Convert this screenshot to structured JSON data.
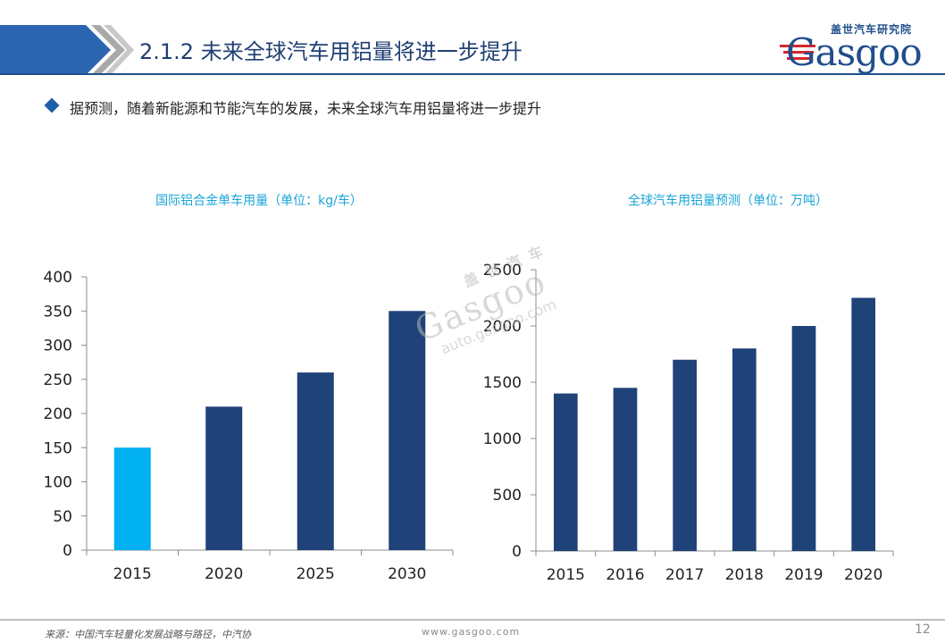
{
  "header": {
    "title": "2.1.2 未来全球汽车用铝量将进一步提升",
    "logo_cn": "盖世汽车研究院",
    "logo_en": "Gasgoo"
  },
  "bullet": {
    "text": "据预测，随着新能源和节能汽车的发展，未来全球汽车用铝量将进一步提升"
  },
  "watermark": {
    "cn": "盖世汽车",
    "en": "Gasgoo",
    "url": "auto.gasgoo.com"
  },
  "colors": {
    "title": "#1f3f73",
    "bar_dark": "#1f4278",
    "bar_light": "#00b0f0",
    "chart_title": "#1aa4d8"
  },
  "chart_data": [
    {
      "type": "bar",
      "title": "国际铝合金单车用量（单位：kg/车）",
      "categories": [
        "2015",
        "2020",
        "2025",
        "2030"
      ],
      "values": [
        150,
        210,
        260,
        350
      ],
      "highlight_index": 0,
      "ylim": [
        0,
        400
      ],
      "yticks": [
        0,
        50,
        100,
        150,
        200,
        250,
        300,
        350,
        400
      ],
      "xlabel": "",
      "ylabel": "",
      "grid": false
    },
    {
      "type": "bar",
      "title": "全球汽车用铝量预测（单位：万吨）",
      "categories": [
        "2015",
        "2016",
        "2017",
        "2018",
        "2019",
        "2020"
      ],
      "values": [
        1400,
        1450,
        1700,
        1800,
        2000,
        2250
      ],
      "ylim": [
        0,
        2500
      ],
      "yticks": [
        0,
        500,
        1000,
        1500,
        2000,
        2500
      ],
      "xlabel": "",
      "ylabel": "",
      "grid": false
    }
  ],
  "footer": {
    "source": "来源：中国汽车轻量化发展战略与路径，中汽协",
    "url": "www.gasgoo.com",
    "page": "12"
  }
}
